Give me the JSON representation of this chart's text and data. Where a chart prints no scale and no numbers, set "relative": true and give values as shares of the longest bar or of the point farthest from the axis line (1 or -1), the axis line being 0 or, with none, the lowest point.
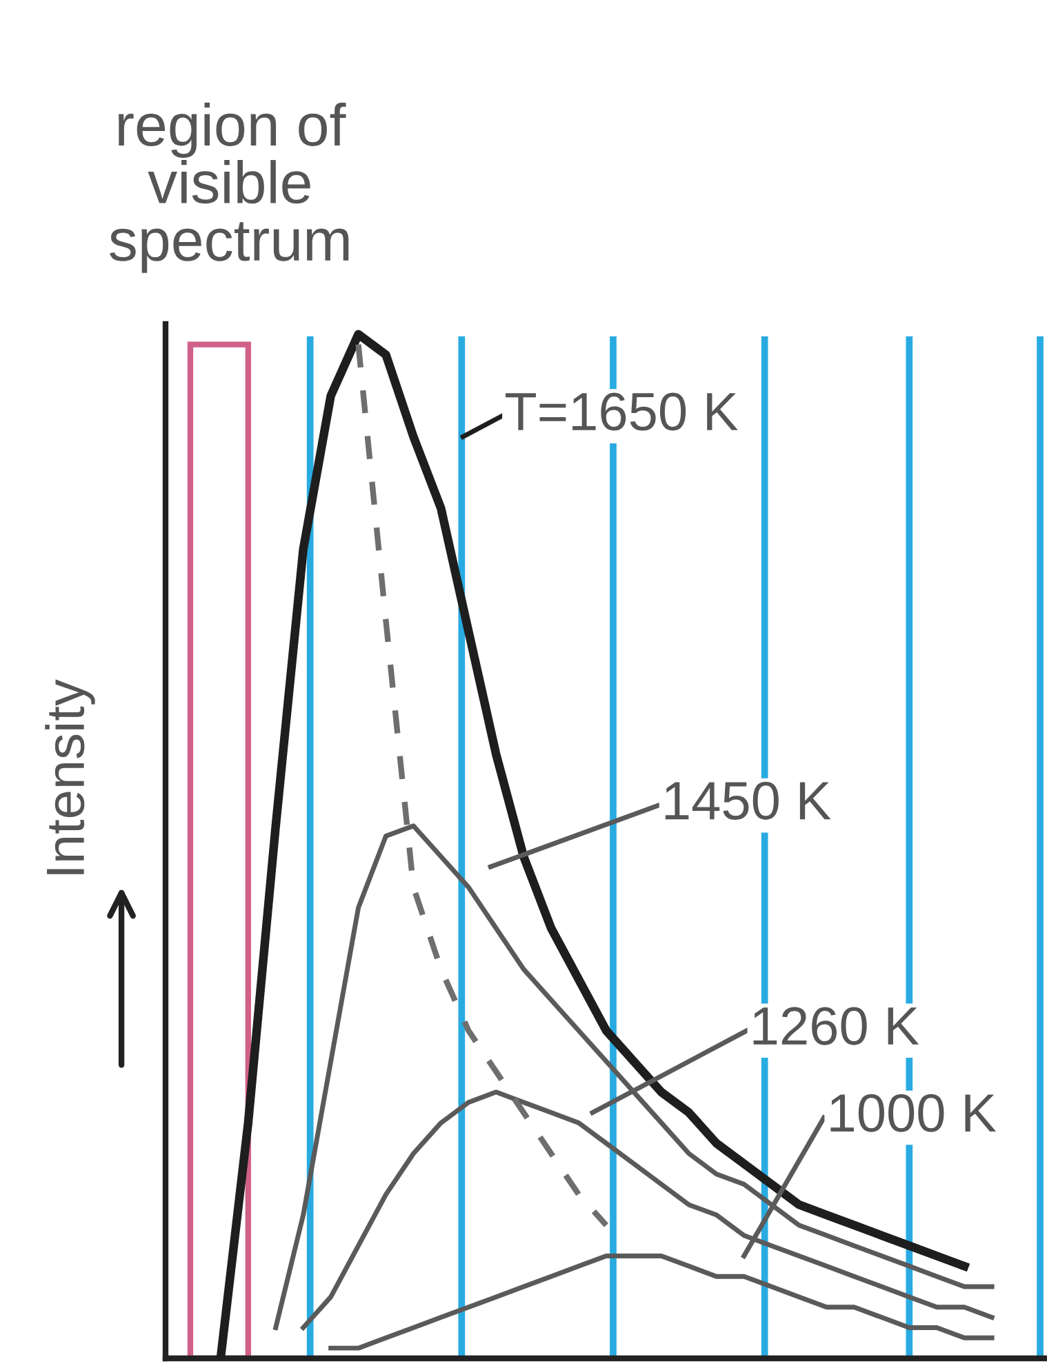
{
  "chart_data": {
    "type": "line",
    "relative": true,
    "ylabel": "Intensity",
    "annotations": [
      "region of\nvisible\nspectrum"
    ],
    "legend": "right",
    "marker": "none",
    "line_style": "solid",
    "categories": [
      null,
      null,
      null,
      null,
      null,
      null,
      null,
      null,
      null,
      null,
      null,
      null,
      null,
      null,
      null,
      null,
      null,
      null,
      null,
      null,
      null,
      null,
      null,
      null,
      null,
      null,
      null,
      null,
      null,
      null,
      null,
      null,
      null
    ],
    "series": [
      {
        "name": "T=1650 K",
        "color": "#1e1e1e",
        "values": [
          null,
          null,
          0.0,
          0.23,
          0.52,
          0.79,
          0.94,
          1.0,
          0.98,
          0.9,
          0.83,
          0.71,
          0.59,
          0.49,
          0.42,
          0.37,
          0.32,
          0.29,
          0.26,
          0.24,
          0.21,
          0.19,
          0.17,
          0.15,
          0.14,
          0.13,
          0.12,
          0.11,
          0.1,
          0.09,
          null,
          null,
          null
        ]
      },
      {
        "name": "1450 K",
        "color": "#5a5a5a",
        "values": [
          null,
          null,
          null,
          null,
          0.03,
          0.14,
          0.29,
          0.44,
          0.51,
          0.52,
          0.49,
          0.46,
          0.42,
          0.38,
          0.35,
          0.32,
          0.29,
          0.26,
          0.23,
          0.2,
          0.18,
          0.17,
          0.15,
          0.13,
          0.12,
          0.11,
          0.1,
          0.09,
          0.08,
          0.07,
          0.07,
          null,
          null
        ]
      },
      {
        "name": "1260 K",
        "color": "#5a5a5a",
        "values": [
          null,
          null,
          null,
          null,
          null,
          0.03,
          0.06,
          0.11,
          0.16,
          0.2,
          0.23,
          0.25,
          0.26,
          0.25,
          0.24,
          0.23,
          0.21,
          0.19,
          0.17,
          0.15,
          0.14,
          0.12,
          0.11,
          0.1,
          0.09,
          0.08,
          0.07,
          0.06,
          0.05,
          0.05,
          0.04,
          null,
          null
        ]
      },
      {
        "name": "1000 K",
        "color": "#5a5a5a",
        "values": [
          null,
          null,
          null,
          null,
          null,
          null,
          0.01,
          0.01,
          0.02,
          0.03,
          0.04,
          0.05,
          0.06,
          0.07,
          0.08,
          0.09,
          0.1,
          0.1,
          0.1,
          0.09,
          0.08,
          0.08,
          0.07,
          0.06,
          0.05,
          0.05,
          0.04,
          0.03,
          0.03,
          0.02,
          0.02,
          null,
          null
        ]
      },
      {
        "color": "#6e6e6e",
        "line_style": "dashed",
        "values": [
          null,
          null,
          null,
          null,
          null,
          null,
          null,
          0.99,
          0.72,
          0.46,
          0.38,
          0.32,
          0.28,
          0.24,
          0.2,
          0.16,
          0.13,
          null,
          null,
          null,
          null,
          null,
          null,
          null,
          null,
          null,
          null,
          null,
          null,
          null,
          null,
          null,
          null
        ]
      }
    ]
  }
}
